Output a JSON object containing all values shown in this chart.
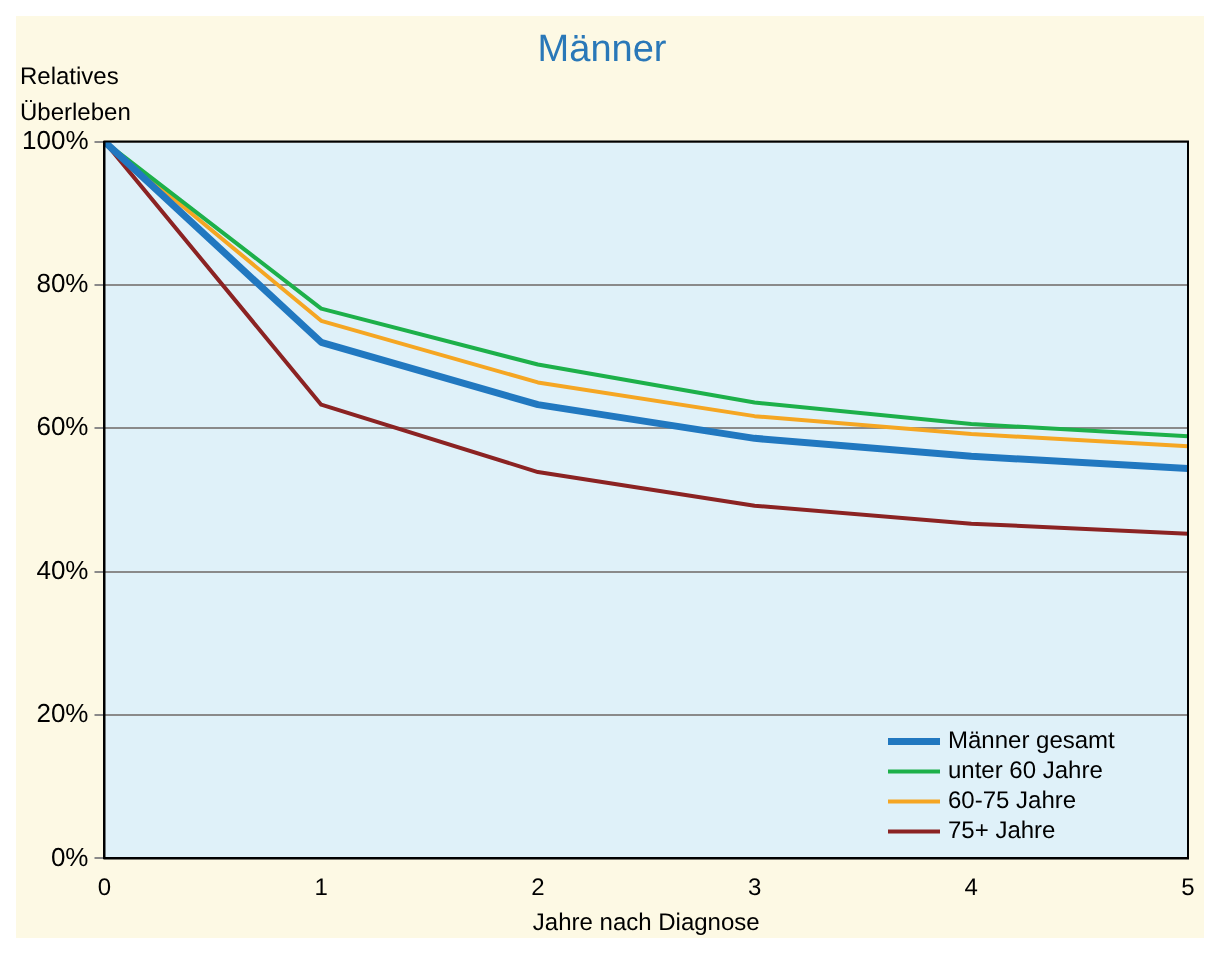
{
  "chart_data": {
    "type": "line",
    "title": "Männer",
    "xlabel": "Jahre nach Diagnose",
    "ylabel": "Relatives Überleben",
    "x": [
      0,
      1,
      2,
      3,
      4,
      5
    ],
    "xlim": [
      0,
      5
    ],
    "xticks": [
      0,
      1,
      2,
      3,
      4,
      5
    ],
    "ylim": [
      0,
      100
    ],
    "yticks": [
      {
        "value": 0,
        "label": "0%"
      },
      {
        "value": 20,
        "label": "20%"
      },
      {
        "value": 40,
        "label": "40%"
      },
      {
        "value": 60,
        "label": "60%"
      },
      {
        "value": 80,
        "label": "80%"
      },
      {
        "value": 100,
        "label": "100%"
      }
    ],
    "grid": "y",
    "legend": "bottom right",
    "marker": "none",
    "line_style": "solid",
    "series": [
      {
        "name": "Männer gesamt",
        "color": "#2178c0",
        "values": [
          100,
          72,
          63.3,
          58.6,
          56.1,
          54.4
        ]
      },
      {
        "name": "unter 60 Jahre",
        "color": "#1db04a",
        "values": [
          100,
          76.7,
          68.9,
          63.6,
          60.6,
          58.9
        ]
      },
      {
        "name": "60-75 Jahre",
        "color": "#f5a623",
        "values": [
          100,
          75,
          66.4,
          61.7,
          59.2,
          57.5
        ]
      },
      {
        "name": "75+ Jahre",
        "color": "#8b2323",
        "values": [
          100,
          63.3,
          53.9,
          49.2,
          46.7,
          45.3
        ]
      }
    ]
  }
}
